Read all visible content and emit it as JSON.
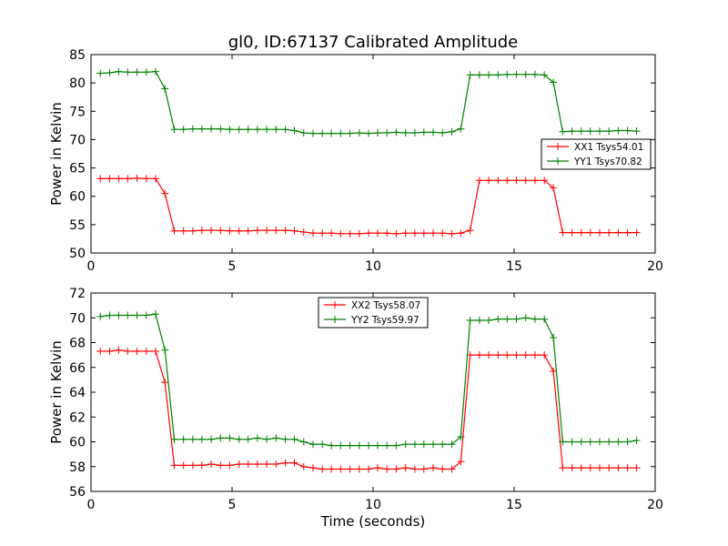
{
  "figure_title": "gl0, ID:67137 Calibrated Amplitude",
  "colors": {
    "xx": "#ff0000",
    "yy": "#008000"
  },
  "chart_data": [
    {
      "type": "line",
      "xlabel": "",
      "ylabel": "Power in Kelvin",
      "xlim": [
        0,
        20
      ],
      "ylim": [
        50,
        85
      ],
      "xticks": [
        0,
        5,
        10,
        15,
        20
      ],
      "yticks": [
        50,
        55,
        60,
        65,
        70,
        75,
        80,
        85
      ],
      "legend_position": "center-right",
      "grid": false,
      "x": [
        0.33,
        0.66,
        0.98,
        1.3,
        1.63,
        1.96,
        2.29,
        2.62,
        2.95,
        3.28,
        3.61,
        3.93,
        4.26,
        4.59,
        4.92,
        5.25,
        5.57,
        5.9,
        6.23,
        6.56,
        6.89,
        7.21,
        7.54,
        7.87,
        8.2,
        8.52,
        8.85,
        9.18,
        9.51,
        9.84,
        10.16,
        10.49,
        10.82,
        11.15,
        11.48,
        11.8,
        12.13,
        12.46,
        12.79,
        13.11,
        13.44,
        13.77,
        14.1,
        14.43,
        14.75,
        15.08,
        15.41,
        15.74,
        16.07,
        16.39,
        16.72,
        17.05,
        17.38,
        17.7,
        18.03,
        18.36,
        18.69,
        19.02,
        19.34
      ],
      "series": [
        {
          "name": "XX1 Tsys54.01",
          "color": "#ff0000",
          "values": [
            63.1,
            63.1,
            63.1,
            63.1,
            63.2,
            63.1,
            63.1,
            60.5,
            53.9,
            53.9,
            53.9,
            54.0,
            54.0,
            54.0,
            53.9,
            53.9,
            53.9,
            54.0,
            54.0,
            54.0,
            54.0,
            53.9,
            53.7,
            53.5,
            53.5,
            53.5,
            53.4,
            53.4,
            53.4,
            53.5,
            53.5,
            53.5,
            53.4,
            53.5,
            53.5,
            53.5,
            53.5,
            53.5,
            53.4,
            53.5,
            54.0,
            62.8,
            62.8,
            62.8,
            62.8,
            62.8,
            62.8,
            62.8,
            62.8,
            61.5,
            53.6,
            53.6,
            53.6,
            53.6,
            53.6,
            53.6,
            53.6,
            53.6,
            53.6
          ]
        },
        {
          "name": "YY1 Tsys70.82",
          "color": "#008000",
          "values": [
            81.7,
            81.8,
            82.0,
            81.9,
            81.9,
            81.9,
            82.0,
            79.0,
            71.8,
            71.8,
            71.9,
            71.9,
            71.9,
            71.9,
            71.8,
            71.8,
            71.8,
            71.8,
            71.8,
            71.8,
            71.8,
            71.6,
            71.2,
            71.1,
            71.1,
            71.1,
            71.1,
            71.1,
            71.2,
            71.1,
            71.2,
            71.2,
            71.3,
            71.2,
            71.2,
            71.3,
            71.3,
            71.2,
            71.4,
            71.9,
            81.4,
            81.4,
            81.4,
            81.4,
            81.5,
            81.5,
            81.5,
            81.5,
            81.4,
            80.1,
            71.4,
            71.5,
            71.5,
            71.5,
            71.5,
            71.5,
            71.6,
            71.6,
            71.5
          ]
        }
      ]
    },
    {
      "type": "line",
      "xlabel": "Time (seconds)",
      "ylabel": "Power in Kelvin",
      "xlim": [
        0,
        20
      ],
      "ylim": [
        56,
        72
      ],
      "xticks": [
        0,
        5,
        10,
        15,
        20
      ],
      "yticks": [
        56,
        58,
        60,
        62,
        64,
        66,
        68,
        70,
        72
      ],
      "legend_position": "upper-center",
      "grid": false,
      "x": [
        0.33,
        0.66,
        0.98,
        1.3,
        1.63,
        1.96,
        2.29,
        2.62,
        2.95,
        3.28,
        3.61,
        3.93,
        4.26,
        4.59,
        4.92,
        5.25,
        5.57,
        5.9,
        6.23,
        6.56,
        6.89,
        7.21,
        7.54,
        7.87,
        8.2,
        8.52,
        8.85,
        9.18,
        9.51,
        9.84,
        10.16,
        10.49,
        10.82,
        11.15,
        11.48,
        11.8,
        12.13,
        12.46,
        12.79,
        13.11,
        13.44,
        13.77,
        14.1,
        14.43,
        14.75,
        15.08,
        15.41,
        15.74,
        16.07,
        16.39,
        16.72,
        17.05,
        17.38,
        17.7,
        18.03,
        18.36,
        18.69,
        19.02,
        19.34
      ],
      "series": [
        {
          "name": "XX2 Tsys58.07",
          "color": "#ff0000",
          "values": [
            67.3,
            67.3,
            67.4,
            67.3,
            67.3,
            67.3,
            67.3,
            64.8,
            58.1,
            58.1,
            58.1,
            58.1,
            58.2,
            58.1,
            58.1,
            58.2,
            58.2,
            58.2,
            58.2,
            58.2,
            58.3,
            58.3,
            58.0,
            57.9,
            57.8,
            57.8,
            57.8,
            57.8,
            57.8,
            57.8,
            57.9,
            57.8,
            57.8,
            57.9,
            57.8,
            57.8,
            57.9,
            57.8,
            57.8,
            58.4,
            67.0,
            67.0,
            67.0,
            67.0,
            67.0,
            67.0,
            67.0,
            67.0,
            67.0,
            65.7,
            57.9,
            57.9,
            57.9,
            57.9,
            57.9,
            57.9,
            57.9,
            57.9,
            57.9
          ]
        },
        {
          "name": "YY2 Tsys59.97",
          "color": "#008000",
          "values": [
            70.1,
            70.2,
            70.2,
            70.2,
            70.2,
            70.2,
            70.3,
            67.4,
            60.2,
            60.2,
            60.2,
            60.2,
            60.2,
            60.3,
            60.3,
            60.2,
            60.2,
            60.3,
            60.2,
            60.3,
            60.2,
            60.2,
            60.0,
            59.8,
            59.8,
            59.7,
            59.7,
            59.7,
            59.7,
            59.7,
            59.7,
            59.7,
            59.7,
            59.8,
            59.8,
            59.8,
            59.8,
            59.8,
            59.8,
            60.4,
            69.8,
            69.8,
            69.8,
            69.9,
            69.9,
            69.9,
            70.0,
            69.9,
            69.9,
            68.4,
            60.0,
            60.0,
            60.0,
            60.0,
            60.0,
            60.0,
            60.0,
            60.0,
            60.1
          ]
        }
      ]
    }
  ]
}
